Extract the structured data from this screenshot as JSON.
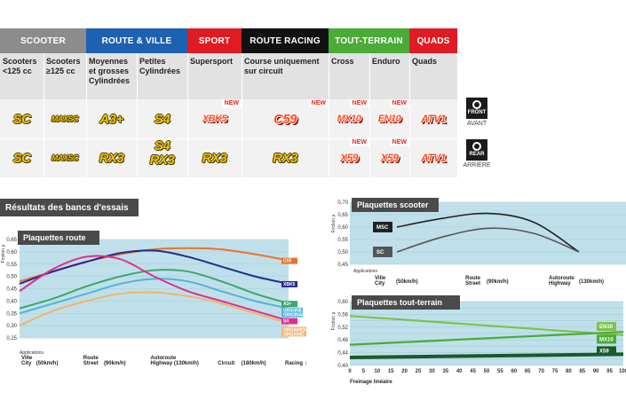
{
  "table": {
    "categories": [
      {
        "label": "SCOOTER",
        "color": "#8c8c8c"
      },
      {
        "label": "ROUTE & VILLE",
        "color": "#1d62b0"
      },
      {
        "label": "SPORT",
        "color": "#e01b24"
      },
      {
        "label": "ROUTE RACING",
        "color": "#111111"
      },
      {
        "label": "TOUT-TERRAIN",
        "color": "#4aab36"
      },
      {
        "label": "QUADS",
        "color": "#e01b24"
      }
    ],
    "subheads": [
      "Scooters <125 cc",
      "Scooters ≥125 cc",
      "Moyennes et grosses Cylindrées",
      "Petites Cylindrées",
      "Supersport",
      "Course uniquement sur circuit",
      "Cross",
      "Enduro",
      "Quads"
    ],
    "front": [
      "SC",
      "MAXSC",
      "A3+",
      "S4",
      "XBK5",
      "C59",
      "MX10",
      "EN10",
      "ATV1"
    ],
    "rear": [
      "SC",
      "MAXSC",
      "RX3",
      "S4",
      "RX3",
      "RX3",
      "X59",
      "X59",
      "ATV1"
    ],
    "rear_s4_second": "RX3",
    "new_label": "NEW",
    "front_icon": {
      "title": "FRONT",
      "label": "AVANT"
    },
    "rear_icon": {
      "title": "REAR",
      "label": "ARRIÈRE"
    }
  },
  "results_title": "Résultats des bancs d'essais",
  "chart_data": [
    {
      "type": "line",
      "title": "Plaquettes route",
      "ylabel": "Friction μ",
      "xlabel_prefix": "Applications",
      "categories": [
        "Ville City (50km/h)",
        "Route Street (90km/h)",
        "Autoroute Highway (130km/h)",
        "Circuit (180km/h)",
        "Racing (250km/h)"
      ],
      "x_ticks": [
        {
          "top": "Ville",
          "bottom": "City",
          "speed": "(50km/h)"
        },
        {
          "top": "Route",
          "bottom": "Street",
          "speed": "(90km/h)"
        },
        {
          "top": "Autoroute",
          "bottom": "Highway",
          "speed": "(130km/h)"
        },
        {
          "top": "",
          "bottom": "Circuit",
          "speed": "(180km/h)"
        },
        {
          "top": "",
          "bottom": "Racing",
          "speed": "(250km/h)"
        }
      ],
      "ylim": [
        0.25,
        0.65
      ],
      "yticks": [
        "0,25",
        "0,30",
        "0,35",
        "0,40",
        "0,45",
        "0,50",
        "0,55",
        "0,60",
        "0,65"
      ],
      "series": [
        {
          "name": "C59",
          "color": "#e8742a",
          "x": [
            0,
            0.5,
            1,
            1.5,
            2,
            2.5,
            3,
            3.5,
            4
          ],
          "values": [
            0.48,
            0.52,
            0.56,
            0.59,
            0.61,
            0.615,
            0.61,
            0.59,
            0.565
          ]
        },
        {
          "name": "XBK5",
          "color": "#252a8c",
          "x": [
            0,
            0.5,
            1,
            1.5,
            2,
            2.5,
            3,
            3.5,
            4
          ],
          "values": [
            0.47,
            0.52,
            0.56,
            0.595,
            0.605,
            0.58,
            0.54,
            0.5,
            0.47
          ]
        },
        {
          "name": "A3+",
          "color": "#3aa86a",
          "x": [
            0,
            0.5,
            1,
            1.5,
            2,
            2.5,
            3,
            3.5,
            4
          ],
          "values": [
            0.37,
            0.41,
            0.46,
            0.5,
            0.525,
            0.52,
            0.48,
            0.43,
            0.39
          ]
        },
        {
          "name": "ORIGINE",
          "color": "#4fb4d9",
          "x": [
            0,
            0.5,
            1,
            1.5,
            2,
            2.5,
            3,
            3.5,
            4
          ],
          "values": [
            0.35,
            0.39,
            0.43,
            0.47,
            0.49,
            0.48,
            0.44,
            0.4,
            0.37
          ]
        },
        {
          "name": "S4",
          "color": "#e02e8e",
          "x": [
            0,
            0.5,
            1,
            1.5,
            2,
            2.5,
            3,
            3.5,
            4
          ],
          "values": [
            0.44,
            0.53,
            0.58,
            0.57,
            0.5,
            0.44,
            0.4,
            0.36,
            0.32
          ]
        },
        {
          "name": "ORGANIQUE",
          "color": "#f4b36a",
          "x": [
            0,
            0.5,
            1,
            1.5,
            2,
            2.5,
            3,
            3.5,
            4
          ],
          "values": [
            0.3,
            0.36,
            0.4,
            0.43,
            0.435,
            0.42,
            0.39,
            0.35,
            0.31
          ]
        }
      ],
      "legend_labels": {
        "c59": "C59",
        "xbk5": "XBK5",
        "a3": "A3+",
        "orig1": "ORIGINE",
        "orig2": "ORIGINAL",
        "s4": "S4",
        "org1": "ORGANIQUE",
        "org2": "ORGANIC"
      }
    },
    {
      "type": "line",
      "title": "Plaquettes scooter",
      "ylabel": "Friction μ",
      "xlabel_prefix": "Applications",
      "x_ticks": [
        {
          "top": "Ville",
          "bottom": "City",
          "speed": "(50km/h)"
        },
        {
          "top": "Route",
          "bottom": "Street",
          "speed": "(90km/h)"
        },
        {
          "top": "Autoroute",
          "bottom": "Highway",
          "speed": "(130km/h)"
        }
      ],
      "ylim": [
        0.45,
        0.7
      ],
      "yticks": [
        "0,45",
        "0,50",
        "0,55",
        "0,60",
        "0,65",
        "0,70"
      ],
      "series": [
        {
          "name": "MSC",
          "color": "#222222",
          "x": [
            0,
            0.5,
            1,
            1.5,
            2
          ],
          "values": [
            0.6,
            0.635,
            0.655,
            0.62,
            0.5
          ]
        },
        {
          "name": "SC",
          "color": "#555555",
          "x": [
            0,
            0.5,
            1,
            1.5,
            2
          ],
          "values": [
            0.5,
            0.56,
            0.595,
            0.575,
            0.5
          ]
        }
      ]
    },
    {
      "type": "line",
      "title": "Plaquettes tout-terrain",
      "ylabel": "Friction μ",
      "xlabel": "Freinage linéaire",
      "xlim": [
        0,
        100
      ],
      "xticks": [
        "0",
        "5",
        "10",
        "15",
        "20",
        "25",
        "30",
        "35",
        "40",
        "45",
        "50",
        "55",
        "60",
        "65",
        "70",
        "75",
        "80",
        "85",
        "90",
        "95",
        "100"
      ],
      "ylim": [
        0.4,
        0.6
      ],
      "yticks": [
        "0,40",
        "0,42",
        "0,44",
        "0,46",
        "0,48",
        "0,50",
        "0,52",
        "0,54",
        "0,56",
        "0,58",
        "0,60"
      ],
      "series": [
        {
          "name": "EN10",
          "color": "#7dc24a",
          "x": [
            0,
            100
          ],
          "values": [
            0.555,
            0.495
          ]
        },
        {
          "name": "MX10",
          "color": "#4aab36",
          "x": [
            0,
            100
          ],
          "values": [
            0.465,
            0.505
          ]
        },
        {
          "name": "X59",
          "color": "#1a5a2a",
          "x": [
            0,
            100
          ],
          "values": [
            0.425,
            0.435
          ]
        }
      ]
    }
  ]
}
